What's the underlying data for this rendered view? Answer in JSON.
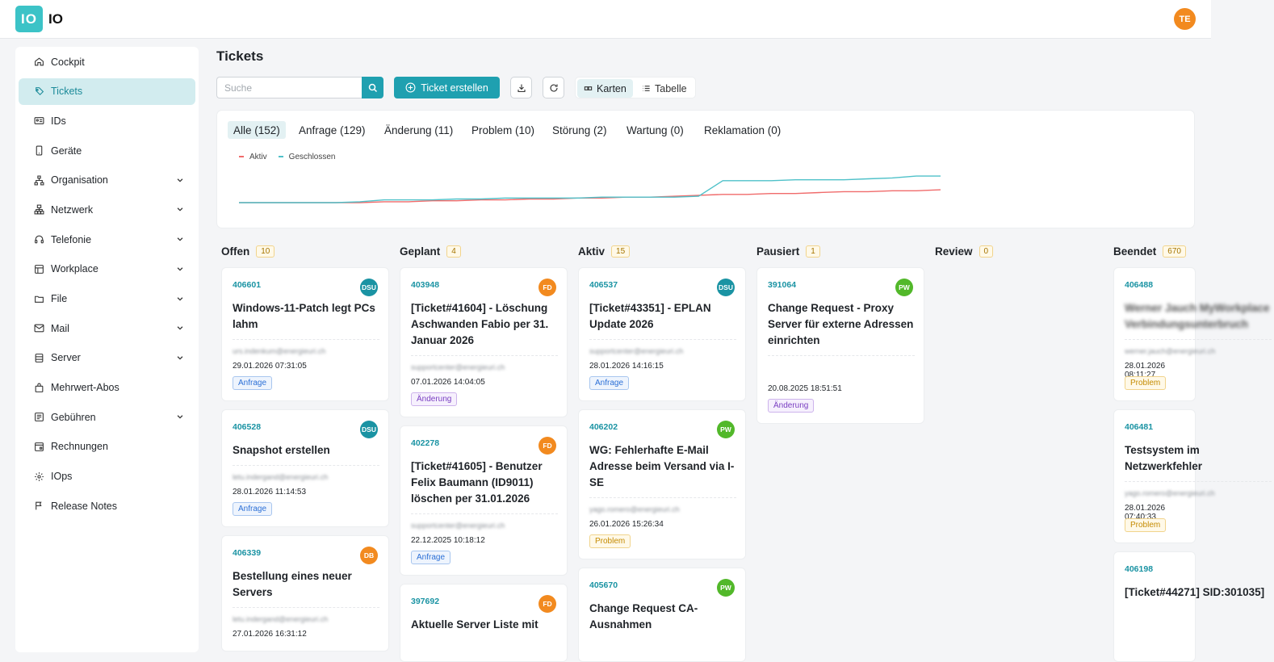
{
  "app": {
    "logo": "IO",
    "name": "IO",
    "user_initials": "TE"
  },
  "sidebar": {
    "items": [
      {
        "label": "Cockpit",
        "icon": "home-icon",
        "chevron": false,
        "active": false
      },
      {
        "label": "Tickets",
        "icon": "tag-icon",
        "chevron": false,
        "active": true
      },
      {
        "label": "IDs",
        "icon": "id-card-icon",
        "chevron": false,
        "active": false
      },
      {
        "label": "Geräte",
        "icon": "smartphone-icon",
        "chevron": false,
        "active": false
      },
      {
        "label": "Organisation",
        "icon": "org-chart-icon",
        "chevron": true,
        "active": false
      },
      {
        "label": "Netzwerk",
        "icon": "network-icon",
        "chevron": true,
        "active": false
      },
      {
        "label": "Telefonie",
        "icon": "headset-icon",
        "chevron": true,
        "active": false
      },
      {
        "label": "Workplace",
        "icon": "workplace-icon",
        "chevron": true,
        "active": false
      },
      {
        "label": "File",
        "icon": "folder-icon",
        "chevron": true,
        "active": false
      },
      {
        "label": "Mail",
        "icon": "mail-icon",
        "chevron": true,
        "active": false
      },
      {
        "label": "Server",
        "icon": "server-icon",
        "chevron": true,
        "active": false
      },
      {
        "label": "Mehrwert-Abos",
        "icon": "bag-icon",
        "chevron": false,
        "active": false
      },
      {
        "label": "Gebühren",
        "icon": "fees-icon",
        "chevron": true,
        "active": false
      },
      {
        "label": "Rechnungen",
        "icon": "invoice-icon",
        "chevron": false,
        "active": false
      },
      {
        "label": "IOps",
        "icon": "gear-icon",
        "chevron": false,
        "active": false
      },
      {
        "label": "Release Notes",
        "icon": "flag-icon",
        "chevron": false,
        "active": false
      }
    ]
  },
  "page": {
    "title": "Tickets"
  },
  "toolbar": {
    "search_placeholder": "Suche",
    "create_label": "Ticket erstellen",
    "view_cards": "Karten",
    "view_table": "Tabelle"
  },
  "filters": {
    "tabs": [
      "Alle (152)",
      "Anfrage (129)",
      "Änderung (11)",
      "Problem (10)",
      "Störung (2)",
      "Wartung (0)",
      "Reklamation (0)"
    ],
    "selected": 0
  },
  "chart_data": {
    "type": "line",
    "legend": [
      "Aktiv",
      "Geschlossen"
    ],
    "series": [
      {
        "name": "Aktiv",
        "color": "#f06b6b",
        "values": [
          0,
          0,
          0,
          0,
          0,
          0,
          1,
          1,
          2,
          2,
          3,
          3,
          4,
          4,
          5,
          5,
          6,
          6,
          7,
          8,
          9,
          9,
          10,
          10,
          11,
          12,
          12,
          13,
          13,
          14
        ]
      },
      {
        "name": "Geschlossen",
        "color": "#4fc1c9",
        "values": [
          0,
          0,
          0,
          0,
          0,
          1,
          3,
          3,
          3,
          4,
          4,
          5,
          5,
          5,
          5,
          6,
          6,
          6,
          6,
          7,
          24,
          24,
          24,
          25,
          25,
          25,
          26,
          27,
          29,
          29
        ]
      }
    ]
  },
  "columns": [
    {
      "title": "Offen",
      "count": "10",
      "cards": [
        {
          "id": "406601",
          "avatar": "DSU",
          "avatar_color": "#1a93a3",
          "title": "Windows-11-Patch legt PCs lahm",
          "email": "urs.indenkum@energieuri.ch",
          "date": "29.01.2026 07:31:05",
          "tag": "Anfrage",
          "tag_kind": "anfrage"
        },
        {
          "id": "406528",
          "avatar": "DSU",
          "avatar_color": "#1a93a3",
          "title": "Snapshot erstellen",
          "email": "letu.indergand@energieuri.ch",
          "date": "28.01.2026 11:14:53",
          "tag": "Anfrage",
          "tag_kind": "anfrage"
        },
        {
          "id": "406339",
          "avatar": "DB",
          "avatar_color": "#f28a1f",
          "title": "Bestellung eines neuer Servers",
          "email": "letu.indergand@energieuri.ch",
          "date": "27.01.2026 16:31:12",
          "tag": "",
          "tag_kind": ""
        }
      ]
    },
    {
      "title": "Geplant",
      "count": "4",
      "cards": [
        {
          "id": "403948",
          "avatar": "FD",
          "avatar_color": "#f28a1f",
          "title": "[Ticket#41604] - Löschung Aschwanden Fabio per 31. Januar 2026",
          "email": "supportcenter@energieuri.ch",
          "date": "07.01.2026 14:04:05",
          "tag": "Änderung",
          "tag_kind": "aenderung"
        },
        {
          "id": "402278",
          "avatar": "FD",
          "avatar_color": "#f28a1f",
          "title": "[Ticket#41605] - Benutzer Felix Baumann (ID9011) löschen per 31.01.2026",
          "email": "supportcenter@energieuri.ch",
          "date": "22.12.2025 10:18:12",
          "tag": "Anfrage",
          "tag_kind": "anfrage"
        },
        {
          "id": "397692",
          "avatar": "FD",
          "avatar_color": "#f28a1f",
          "title": "Aktuelle Server Liste mit",
          "email": "",
          "date": "",
          "tag": "",
          "tag_kind": ""
        }
      ]
    },
    {
      "title": "Aktiv",
      "count": "15",
      "cards": [
        {
          "id": "406537",
          "avatar": "DSU",
          "avatar_color": "#1a93a3",
          "title": "[Ticket#43351] - EPLAN Update 2026",
          "email": "supportcenter@energieuri.ch",
          "date": "28.01.2026 14:16:15",
          "tag": "Anfrage",
          "tag_kind": "anfrage"
        },
        {
          "id": "406202",
          "avatar": "PW",
          "avatar_color": "#52b82a",
          "title": "WG: Fehlerhafte E-Mail Adresse beim Versand via I-SE",
          "email": "yago.romero@energieuri.ch",
          "date": "26.01.2026 15:26:34",
          "tag": "Problem",
          "tag_kind": "problem"
        },
        {
          "id": "405670",
          "avatar": "PW",
          "avatar_color": "#52b82a",
          "title": "Change Request CA-Ausnahmen",
          "email": "",
          "date": "",
          "tag": "",
          "tag_kind": ""
        }
      ]
    },
    {
      "title": "Pausiert",
      "count": "1",
      "cards": [
        {
          "id": "391064",
          "avatar": "PW",
          "avatar_color": "#52b82a",
          "title": "Change Request - Proxy Server für externe Adressen einrichten",
          "email": "",
          "date": "20.08.2025 18:51:51",
          "tag": "Änderung",
          "tag_kind": "aenderung"
        }
      ]
    },
    {
      "title": "Review",
      "count": "0",
      "cards": []
    },
    {
      "title": "Beendet",
      "count": "670",
      "cards": [
        {
          "id": "406488",
          "avatar": "",
          "avatar_color": "",
          "title": "Werner Jauch MyWorkplace Verbindungsunterbruch",
          "email": "werner.jauch@energieuri.ch",
          "date": "28.01.2026 08:11:27",
          "tag": "Problem",
          "tag_kind": "problem"
        },
        {
          "id": "406481",
          "avatar": "",
          "avatar_color": "",
          "title": "Testsystem im Netzwerkfehler",
          "email": "yago.romero@energieuri.ch",
          "date": "28.01.2026 07:40:33",
          "tag": "Problem",
          "tag_kind": "problem"
        },
        {
          "id": "406198",
          "avatar": "",
          "avatar_color": "",
          "title": "[Ticket#44271] SID:301035]",
          "email": "",
          "date": "",
          "tag": "",
          "tag_kind": ""
        }
      ]
    }
  ]
}
